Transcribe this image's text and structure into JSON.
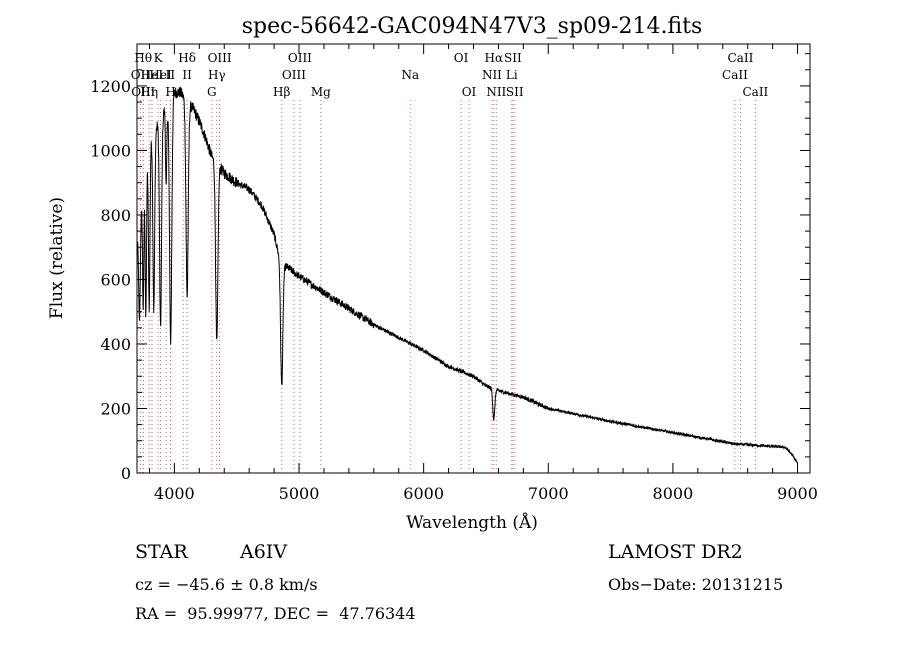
{
  "chart_data": {
    "type": "line",
    "title": "spec-56642-GAC094N47V3_sp09-214.fits",
    "xlabel": "Wavelength (Å)",
    "ylabel": "Flux (relative)",
    "xlim": [
      3700,
      9100
    ],
    "ylim": [
      0,
      1330
    ],
    "xticks": [
      4000,
      5000,
      6000,
      7000,
      8000,
      9000
    ],
    "yticks": [
      0,
      200,
      400,
      600,
      800,
      1000,
      1200
    ],
    "xtick_labels": [
      "4000",
      "5000",
      "6000",
      "7000",
      "8000",
      "9000"
    ],
    "ytick_labels": [
      "0",
      "200",
      "400",
      "600",
      "800",
      "1000",
      "1200"
    ],
    "grid": false,
    "line_color": "#000000",
    "marker_color": "#e06060",
    "continuum": [
      [
        3700,
        700
      ],
      [
        3800,
        1020
      ],
      [
        3900,
        1110
      ],
      [
        4000,
        1180
      ],
      [
        4050,
        1180
      ],
      [
        4100,
        1150
      ],
      [
        4150,
        1130
      ],
      [
        4200,
        1090
      ],
      [
        4250,
        1040
      ],
      [
        4300,
        980
      ],
      [
        4400,
        930
      ],
      [
        4500,
        900
      ],
      [
        4600,
        880
      ],
      [
        4700,
        830
      ],
      [
        4800,
        740
      ],
      [
        4830,
        690
      ],
      [
        4870,
        640
      ],
      [
        4900,
        640
      ],
      [
        5000,
        610
      ],
      [
        5200,
        560
      ],
      [
        5400,
        510
      ],
      [
        5600,
        460
      ],
      [
        5800,
        420
      ],
      [
        6000,
        380
      ],
      [
        6200,
        330
      ],
      [
        6400,
        300
      ],
      [
        6500,
        270
      ],
      [
        6600,
        255
      ],
      [
        6800,
        235
      ],
      [
        7000,
        200
      ],
      [
        7500,
        160
      ],
      [
        8000,
        125
      ],
      [
        8500,
        90
      ],
      [
        8900,
        80
      ],
      [
        8950,
        60
      ],
      [
        9000,
        30
      ]
    ],
    "absorption_lines": [
      {
        "center": 3720,
        "depth": 300,
        "width": 6
      },
      {
        "center": 3750,
        "depth": 350,
        "width": 5
      },
      {
        "center": 3771,
        "depth": 450,
        "width": 5
      },
      {
        "center": 3798,
        "depth": 500,
        "width": 6
      },
      {
        "center": 3835,
        "depth": 550,
        "width": 7
      },
      {
        "center": 3889,
        "depth": 650,
        "width": 8
      },
      {
        "center": 3934,
        "depth": 250,
        "width": 5
      },
      {
        "center": 3970,
        "depth": 750,
        "width": 9
      },
      {
        "center": 4102,
        "depth": 600,
        "width": 9
      },
      {
        "center": 4340,
        "depth": 560,
        "width": 9
      },
      {
        "center": 4861,
        "depth": 380,
        "width": 9
      },
      {
        "center": 6563,
        "depth": 95,
        "width": 8
      }
    ],
    "line_markers": [
      {
        "wavelength": 3727,
        "label": "OII",
        "row": 2
      },
      {
        "wavelength": 3750,
        "label": "Hθ",
        "row": 1
      },
      {
        "wavelength": 3750,
        "label": "OIII",
        "row": 3
      },
      {
        "wavelength": 3798,
        "label": "Hη",
        "row": 3
      },
      {
        "wavelength": 3820,
        "label": "HeI",
        "row": 2
      },
      {
        "wavelength": 3869,
        "label": "K",
        "row": 1
      },
      {
        "wavelength": 3889,
        "label": "HeI",
        "row": 2
      },
      {
        "wavelength": 3934,
        "label": "",
        "row": 0
      },
      {
        "wavelength": 3968,
        "label": "II",
        "row": 2
      },
      {
        "wavelength": 3970,
        "label": "H",
        "row": 3
      },
      {
        "wavelength": 4070,
        "label": "",
        "row": 0
      },
      {
        "wavelength": 4102,
        "label": "Hδ",
        "row": 1
      },
      {
        "wavelength": 4102,
        "label": "II",
        "row": 2
      },
      {
        "wavelength": 4300,
        "label": "G",
        "row": 3
      },
      {
        "wavelength": 4340,
        "label": "Hγ",
        "row": 2
      },
      {
        "wavelength": 4363,
        "label": "OIII",
        "row": 1
      },
      {
        "wavelength": 4861,
        "label": "Hβ",
        "row": 3
      },
      {
        "wavelength": 4959,
        "label": "OIII",
        "row": 2
      },
      {
        "wavelength": 5007,
        "label": "OIII",
        "row": 1
      },
      {
        "wavelength": 5175,
        "label": "Mg",
        "row": 3
      },
      {
        "wavelength": 5893,
        "label": "Na",
        "row": 2
      },
      {
        "wavelength": 6300,
        "label": "OI",
        "row": 1
      },
      {
        "wavelength": 6364,
        "label": "OI",
        "row": 3
      },
      {
        "wavelength": 6548,
        "label": "NII",
        "row": 2
      },
      {
        "wavelength": 6563,
        "label": "Hα",
        "row": 1
      },
      {
        "wavelength": 6583,
        "label": "NII",
        "row": 3
      },
      {
        "wavelength": 6707,
        "label": "Li",
        "row": 2
      },
      {
        "wavelength": 6716,
        "label": "SII",
        "row": 1
      },
      {
        "wavelength": 6731,
        "label": "SII",
        "row": 3
      },
      {
        "wavelength": 8498,
        "label": "CaII",
        "row": 2
      },
      {
        "wavelength": 8542,
        "label": "CaII",
        "row": 1
      },
      {
        "wavelength": 8662,
        "label": "CaII",
        "row": 3
      }
    ]
  },
  "info": {
    "object_class": "STAR",
    "subclass": "A6IV",
    "survey": "LAMOST DR2",
    "redshift": "cz = −45.6 ± 0.8 km/s",
    "obs_date": "Obs−Date: 20131215",
    "coords": "RA =  95.99977, DEC =  47.76344"
  }
}
